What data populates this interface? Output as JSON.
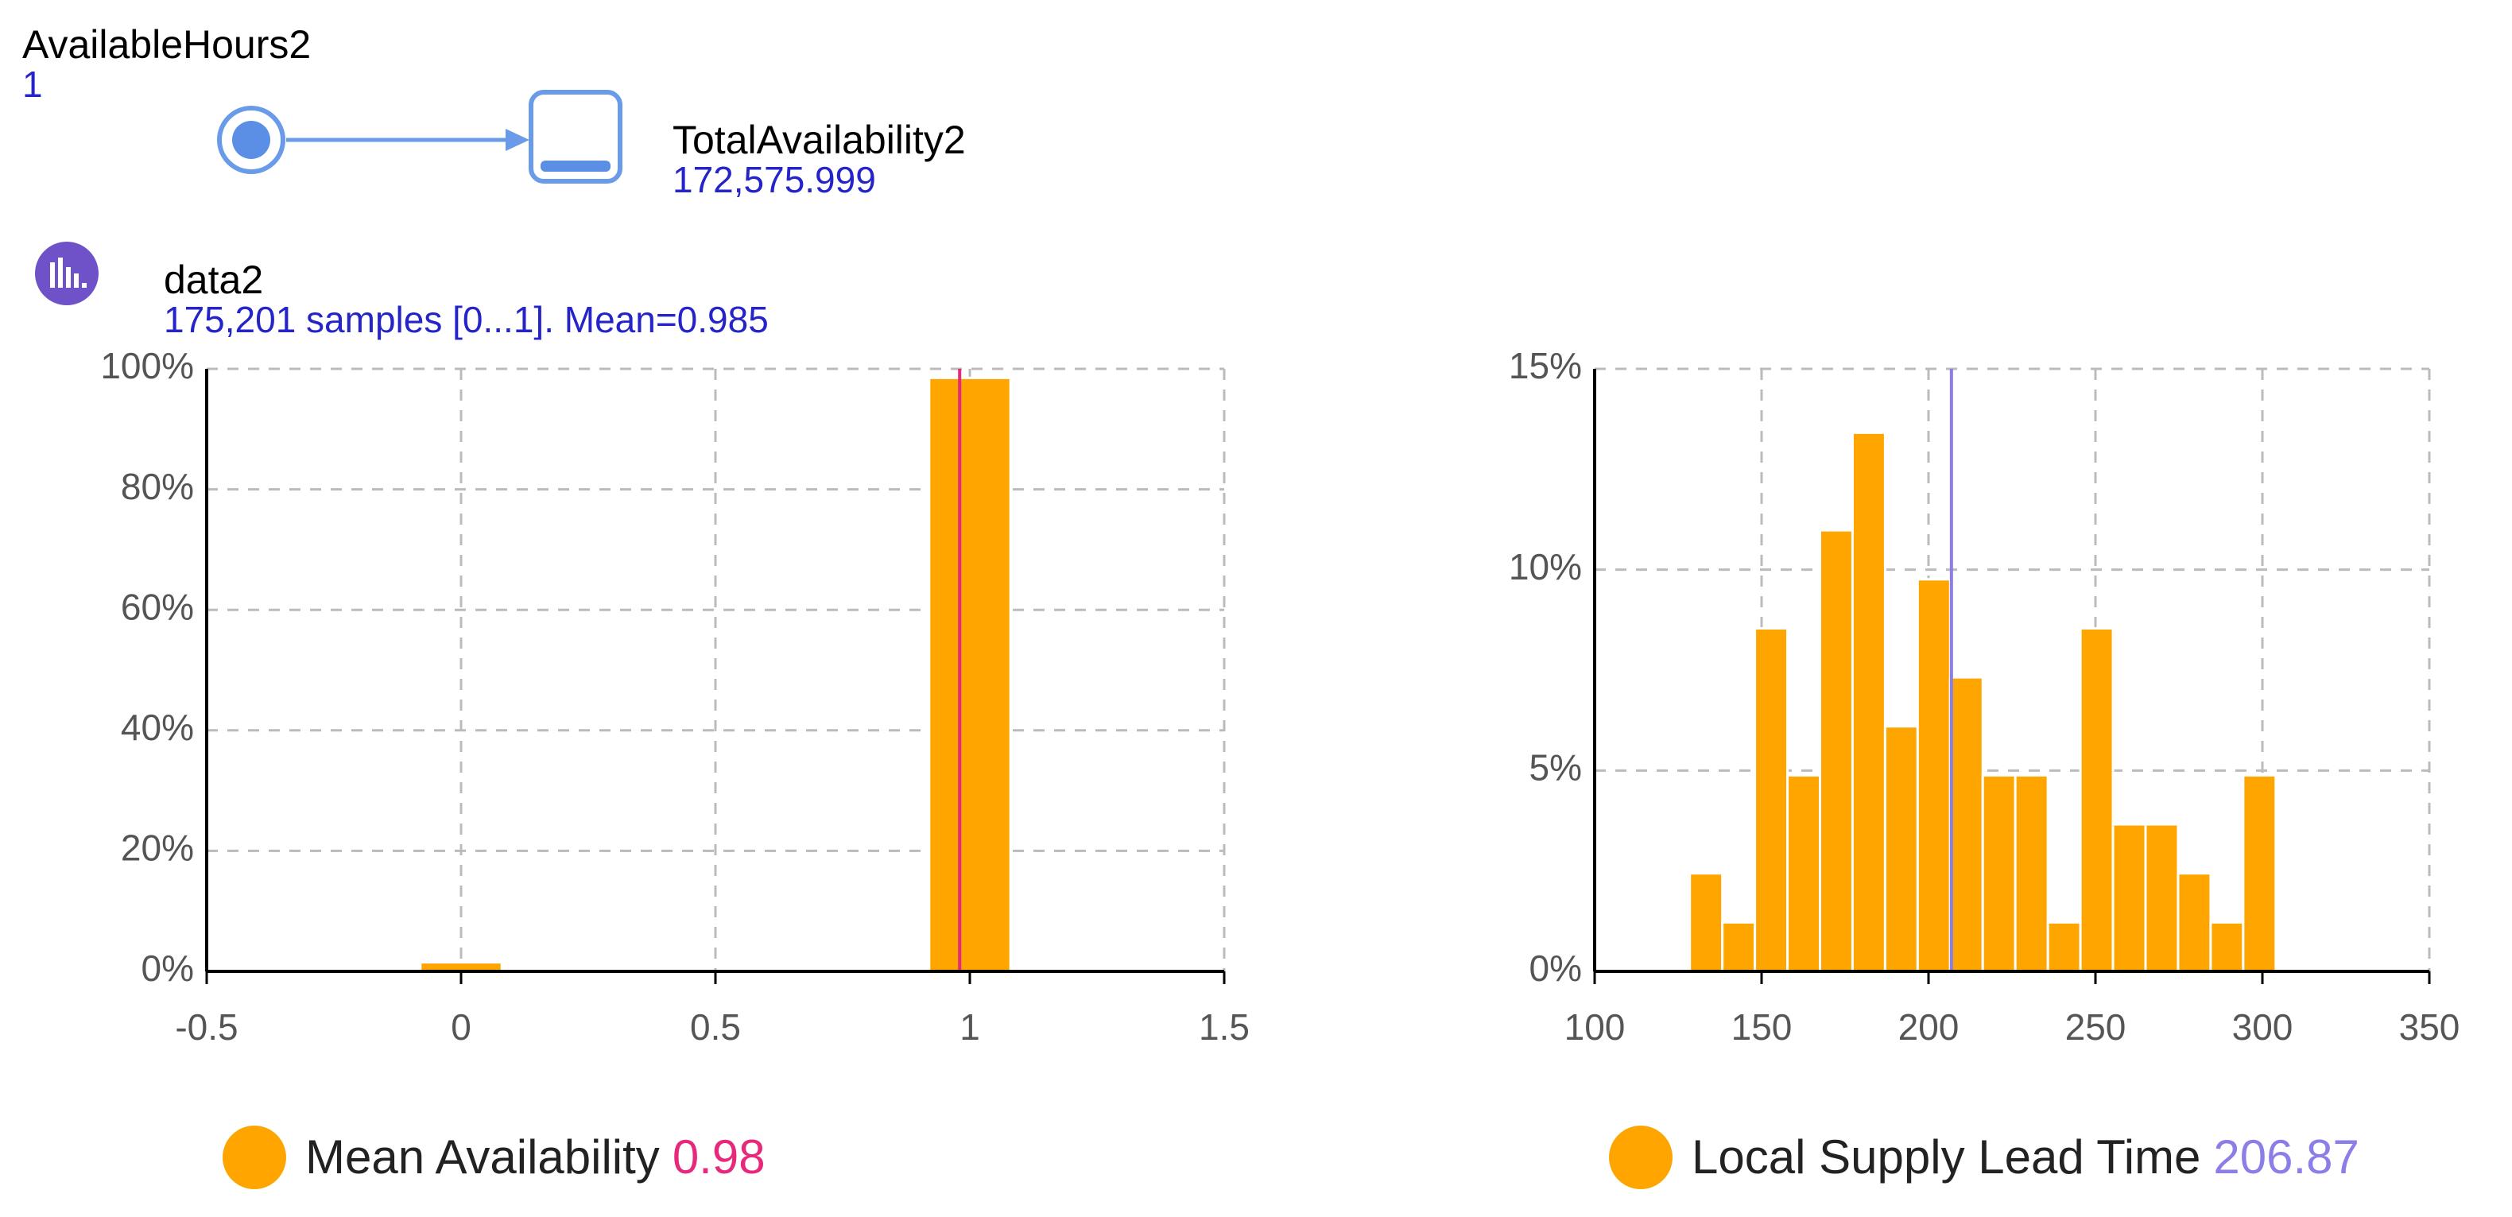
{
  "parameter": {
    "name": "AvailableHours2",
    "value": "1"
  },
  "variable": {
    "name": "TotalAvailability2",
    "value": "172,575.999"
  },
  "dataset": {
    "name": "data2",
    "summary": "175,201 samples [0...1]. Mean=0.985"
  },
  "chart_data": [
    {
      "type": "histogram",
      "name": "Mean Availability",
      "color": "#ffa500",
      "bins": [
        -0.08,
        0.08,
        0.92,
        1.08
      ],
      "values": [
        1.5,
        0,
        98.5
      ],
      "mean": 0.98,
      "mean_color": "#e6297b",
      "xlim": [
        -0.5,
        1.5
      ],
      "xticks": [
        -0.5,
        0,
        0.5,
        1,
        1.5
      ],
      "ylim": [
        0,
        100
      ],
      "yticks": [
        {
          "value": 0,
          "label": "0%"
        },
        {
          "value": 20,
          "label": "20%"
        },
        {
          "value": 40,
          "label": "40%"
        },
        {
          "value": 60,
          "label": "60%"
        },
        {
          "value": 80,
          "label": "80%"
        },
        {
          "value": 100,
          "label": "100%"
        }
      ],
      "grid": true
    },
    {
      "type": "histogram",
      "name": "Local Supply Lead Time",
      "color": "#ffa500",
      "bins": [
        128.5,
        138.25,
        148,
        157.75,
        167.5,
        177.25,
        187,
        196.75,
        206.5,
        216.25,
        226,
        235.75,
        245.5,
        255.25,
        265,
        274.75,
        284.5,
        294.25,
        304
      ],
      "values": [
        2.44,
        1.22,
        8.54,
        4.88,
        10.98,
        13.41,
        6.1,
        9.76,
        7.32,
        4.88,
        4.88,
        1.22,
        8.54,
        3.66,
        3.66,
        2.44,
        1.22,
        4.88
      ],
      "mean": 206.87,
      "mean_color": "#8b7ee6",
      "xlim": [
        100,
        350
      ],
      "xticks": [
        100,
        150,
        200,
        250,
        300,
        350
      ],
      "ylim": [
        0,
        15
      ],
      "yticks": [
        {
          "value": 0,
          "label": "0%"
        },
        {
          "value": 5,
          "label": "5%"
        },
        {
          "value": 10,
          "label": "10%"
        },
        {
          "value": 15,
          "label": "15%"
        }
      ],
      "grid": true
    }
  ]
}
